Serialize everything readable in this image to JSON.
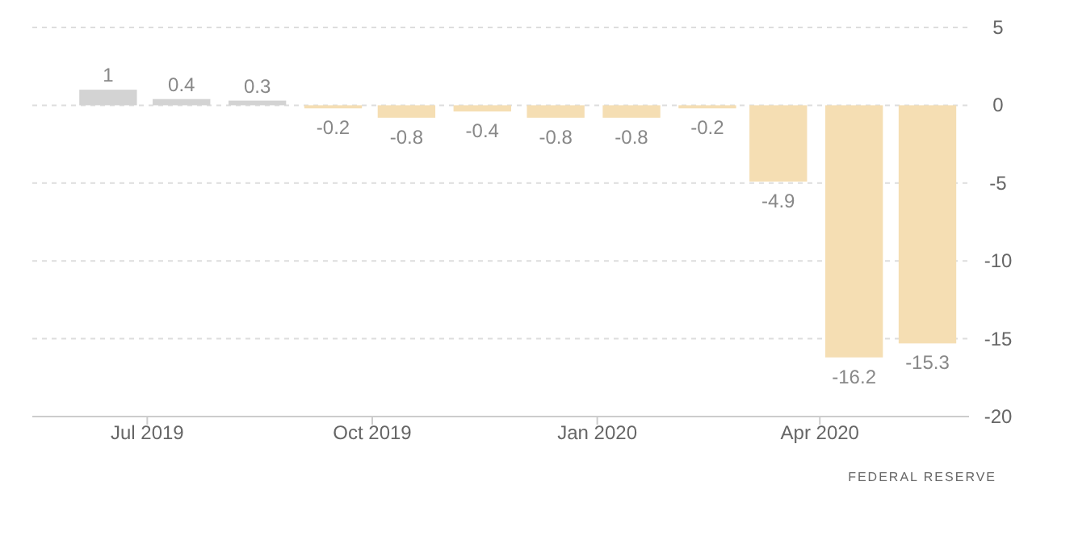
{
  "chart_data": {
    "type": "bar",
    "x": [
      "2019-06-15",
      "2019-07-15",
      "2019-08-15",
      "2019-09-15",
      "2019-10-15",
      "2019-11-15",
      "2019-12-15",
      "2020-01-15",
      "2020-02-15",
      "2020-03-15",
      "2020-04-15",
      "2020-05-15"
    ],
    "values": [
      1,
      0.4,
      0.3,
      -0.2,
      -0.8,
      -0.4,
      -0.8,
      -0.8,
      -0.2,
      -4.9,
      -16.2,
      -15.3
    ],
    "colors": [
      "#d3d3d3",
      "#d3d3d3",
      "#d3d3d3",
      "#f5deb3",
      "#f5deb3",
      "#f5deb3",
      "#f5deb3",
      "#f5deb3",
      "#f5deb3",
      "#f5deb3",
      "#f5deb3",
      "#f5deb3"
    ],
    "xlim": [
      "2019-05-15",
      "2020-06-01"
    ],
    "xticks": [
      {
        "value": "2019-07",
        "label": "Jul 2019"
      },
      {
        "value": "2019-10",
        "label": "Oct 2019"
      },
      {
        "value": "2020-01",
        "label": "Jan 2020"
      },
      {
        "value": "2020-04",
        "label": "Apr 2020"
      }
    ],
    "ylim": [
      -20,
      5
    ],
    "yticks": [
      5,
      0,
      -5,
      -10,
      -15,
      -20
    ],
    "grid": "y",
    "data_labels": true,
    "annotations": [
      "FEDERAL RESERVE"
    ]
  }
}
